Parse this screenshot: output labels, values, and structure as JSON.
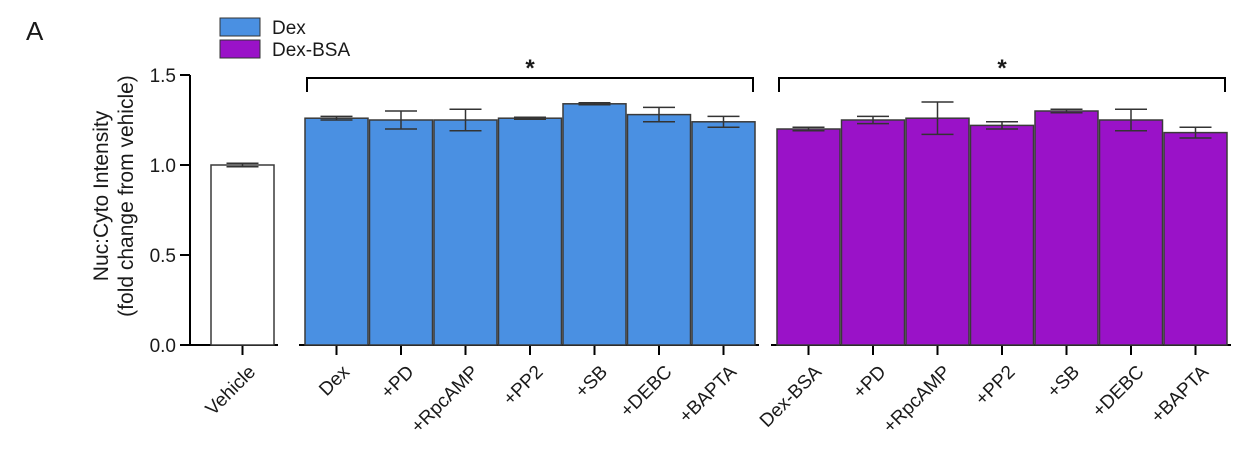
{
  "chart_data": {
    "type": "bar",
    "panel_label": "A",
    "ylabel_line1": "Nuc:Cyto Intensity",
    "ylabel_line2": "(fold change from vehicle)",
    "ylim": [
      0,
      1.5
    ],
    "yticks": [
      "0.0",
      "0.5",
      "1.0",
      "1.5"
    ],
    "legend": {
      "placement": "top-left",
      "entries": [
        {
          "name": "Dex",
          "color": "#4a90e2"
        },
        {
          "name": "Dex-BSA",
          "color": "#9a12c8"
        }
      ]
    },
    "significance_marks": [
      {
        "label": "*",
        "from": "Dex",
        "to": "+BAPTA (Dex)"
      },
      {
        "label": "*",
        "from": "Dex-BSA",
        "to": "+BAPTA (Dex-BSA)"
      }
    ],
    "groups": [
      {
        "name": "Vehicle",
        "color": "#ffffff",
        "bars": [
          {
            "label": "Vehicle",
            "value": 1.0,
            "error": 0.01
          }
        ]
      },
      {
        "name": "Dex",
        "color": "#4a90e2",
        "bars": [
          {
            "label": "Dex",
            "value": 1.26,
            "error": 0.01
          },
          {
            "label": "+PD",
            "value": 1.25,
            "error": 0.05
          },
          {
            "label": "+RpcAMP",
            "value": 1.25,
            "error": 0.06
          },
          {
            "label": "+PP2",
            "value": 1.26,
            "error": 0.005
          },
          {
            "label": "+SB",
            "value": 1.34,
            "error": 0.003
          },
          {
            "label": "+DEBC",
            "value": 1.28,
            "error": 0.04
          },
          {
            "label": "+BAPTA",
            "value": 1.24,
            "error": 0.03
          }
        ]
      },
      {
        "name": "Dex-BSA",
        "color": "#9a12c8",
        "bars": [
          {
            "label": "Dex-BSA",
            "value": 1.2,
            "error": 0.01
          },
          {
            "label": "+PD",
            "value": 1.25,
            "error": 0.02
          },
          {
            "label": "+RpcAMP",
            "value": 1.26,
            "error": 0.09
          },
          {
            "label": "+PP2",
            "value": 1.22,
            "error": 0.02
          },
          {
            "label": "+SB",
            "value": 1.3,
            "error": 0.01
          },
          {
            "label": "+DEBC",
            "value": 1.25,
            "error": 0.06
          },
          {
            "label": "+BAPTA",
            "value": 1.18,
            "error": 0.03
          }
        ]
      }
    ]
  }
}
